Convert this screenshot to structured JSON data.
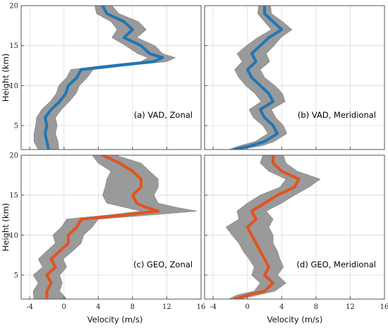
{
  "figure": {
    "xlabel": "Velocity (m/s)",
    "ylabel": "Height (km)"
  },
  "colors": {
    "vad_line": "#1f77b4",
    "geo_line": "#e2531f",
    "band": "#9a9a9a",
    "grid": "#dcdcdc",
    "frame": "#555555"
  },
  "chart_data": [
    {
      "type": "line",
      "label": "(a) VAD, Zonal",
      "xlim": [
        -5,
        16
      ],
      "ylim": [
        2,
        20
      ],
      "grid": true,
      "xticks": [
        "-4",
        "0",
        "4",
        "8",
        "12",
        "16"
      ],
      "yticks": [
        "5",
        "10",
        "15",
        "20"
      ],
      "line_color": "vad",
      "height": [
        2.0,
        3.0,
        4.0,
        5.0,
        6.0,
        7.0,
        8.0,
        9.0,
        10.0,
        11.0,
        12.0,
        12.5,
        13.0,
        13.5,
        14.0,
        15.0,
        16.0,
        17.0,
        18.0,
        19.0,
        20.0
      ],
      "mean": [
        -1.8,
        -2.0,
        -2.2,
        -2.0,
        -2.2,
        -1.5,
        -0.5,
        0.2,
        0.5,
        1.5,
        2.0,
        6.0,
        10.5,
        11.5,
        10.0,
        9.0,
        7.0,
        8.0,
        7.0,
        5.0,
        4.5
      ],
      "lower": [
        -3.0,
        -3.5,
        -3.5,
        -3.3,
        -3.2,
        -2.6,
        -1.6,
        -0.9,
        -0.6,
        0.3,
        0.8,
        4.5,
        9.0,
        9.8,
        8.6,
        7.2,
        5.6,
        6.2,
        5.5,
        3.8,
        3.6
      ],
      "upper": [
        -0.6,
        -0.7,
        -1.0,
        -0.8,
        -1.0,
        -0.3,
        0.6,
        1.4,
        1.8,
        2.7,
        3.4,
        7.5,
        12.0,
        13.0,
        11.5,
        10.6,
        8.5,
        9.6,
        8.7,
        6.4,
        5.6
      ]
    },
    {
      "type": "line",
      "label": "(b) VAD, Meridional",
      "xlim": [
        -5,
        16
      ],
      "ylim": [
        2,
        20
      ],
      "grid": true,
      "xticks": [
        "-4",
        "0",
        "4",
        "8",
        "12",
        "16"
      ],
      "yticks": [
        "5",
        "10",
        "15",
        "20"
      ],
      "line_color": "vad",
      "height": [
        2.0,
        2.5,
        3.0,
        4.0,
        5.0,
        6.0,
        7.0,
        8.0,
        9.0,
        10.0,
        11.0,
        12.0,
        13.0,
        14.0,
        15.0,
        16.0,
        17.0,
        18.0,
        19.0,
        20.0
      ],
      "mean": [
        -1.5,
        0.5,
        2.0,
        3.5,
        3.0,
        2.0,
        1.5,
        3.0,
        2.5,
        1.5,
        0.5,
        0.0,
        1.0,
        0.5,
        1.5,
        2.5,
        4.0,
        3.0,
        2.0,
        2.0
      ],
      "lower": [
        -2.2,
        -0.8,
        0.9,
        2.4,
        1.8,
        0.7,
        0.2,
        1.6,
        0.9,
        -0.2,
        -1.0,
        -1.5,
        -0.6,
        -1.2,
        -0.1,
        1.2,
        2.8,
        2.0,
        1.2,
        1.3
      ],
      "upper": [
        -0.8,
        1.8,
        3.1,
        4.6,
        4.2,
        3.3,
        2.8,
        4.4,
        4.1,
        3.2,
        2.0,
        1.5,
        2.6,
        2.2,
        3.1,
        3.9,
        5.2,
        4.1,
        2.8,
        2.7
      ]
    },
    {
      "type": "line",
      "label": "(c) GEO, Zonal",
      "xlim": [
        -5,
        16
      ],
      "ylim": [
        2,
        20
      ],
      "grid": true,
      "xticks": [
        "-4",
        "0",
        "4",
        "8",
        "12",
        "16"
      ],
      "yticks": [
        "5",
        "10",
        "15",
        "20"
      ],
      "line_color": "geo",
      "height": [
        2.0,
        3.0,
        4.0,
        5.0,
        6.0,
        7.0,
        8.0,
        9.0,
        10.0,
        11.0,
        12.0,
        12.5,
        13.0,
        13.5,
        14.0,
        15.0,
        16.0,
        17.0,
        18.0,
        19.0,
        20.0
      ],
      "mean": [
        -2.0,
        -2.0,
        -1.5,
        -2.0,
        -1.0,
        -1.5,
        -0.5,
        0.5,
        0.5,
        1.5,
        2.0,
        7.0,
        11.0,
        9.5,
        8.5,
        8.0,
        9.0,
        9.0,
        8.0,
        6.5,
        4.5
      ],
      "lower": [
        -3.5,
        -3.6,
        -3.0,
        -3.6,
        -2.5,
        -3.0,
        -2.0,
        -1.0,
        -1.3,
        -0.3,
        0.3,
        5.0,
        9.0,
        7.0,
        5.0,
        4.5,
        4.8,
        5.0,
        5.5,
        4.0,
        3.3
      ],
      "upper": [
        0.3,
        -0.5,
        -0.2,
        -0.5,
        0.3,
        -0.1,
        1.0,
        2.0,
        2.3,
        3.3,
        4.0,
        10.0,
        15.5,
        13.0,
        11.0,
        10.5,
        11.0,
        11.0,
        10.0,
        9.0,
        6.0
      ]
    },
    {
      "type": "line",
      "label": "(d) GEO, Meridional",
      "xlim": [
        -5,
        16
      ],
      "ylim": [
        2,
        20
      ],
      "grid": true,
      "xticks": [
        "-4",
        "0",
        "4",
        "8",
        "12",
        "16"
      ],
      "yticks": [
        "5",
        "10",
        "15",
        "20"
      ],
      "line_color": "geo",
      "height": [
        2.0,
        2.5,
        3.0,
        4.0,
        5.0,
        6.0,
        7.0,
        8.0,
        9.0,
        10.0,
        11.0,
        12.0,
        13.0,
        14.0,
        15.0,
        16.0,
        17.0,
        18.0,
        19.0,
        20.0
      ],
      "mean": [
        -1.5,
        0.0,
        2.0,
        3.0,
        2.0,
        2.5,
        2.0,
        1.5,
        1.0,
        0.5,
        0.0,
        1.0,
        0.5,
        2.0,
        3.5,
        5.5,
        6.0,
        4.0,
        3.0,
        3.0
      ],
      "lower": [
        -2.2,
        -1.2,
        0.8,
        1.5,
        0.5,
        0.8,
        0.2,
        -0.5,
        -1.0,
        -1.8,
        -2.5,
        -1.0,
        -1.2,
        0.0,
        1.5,
        3.8,
        4.5,
        2.5,
        1.5,
        1.8
      ],
      "upper": [
        -0.8,
        1.2,
        3.2,
        4.5,
        3.5,
        4.2,
        3.8,
        3.5,
        3.0,
        3.0,
        2.5,
        3.0,
        2.2,
        4.0,
        5.5,
        7.2,
        8.5,
        5.8,
        4.5,
        4.2
      ]
    }
  ]
}
